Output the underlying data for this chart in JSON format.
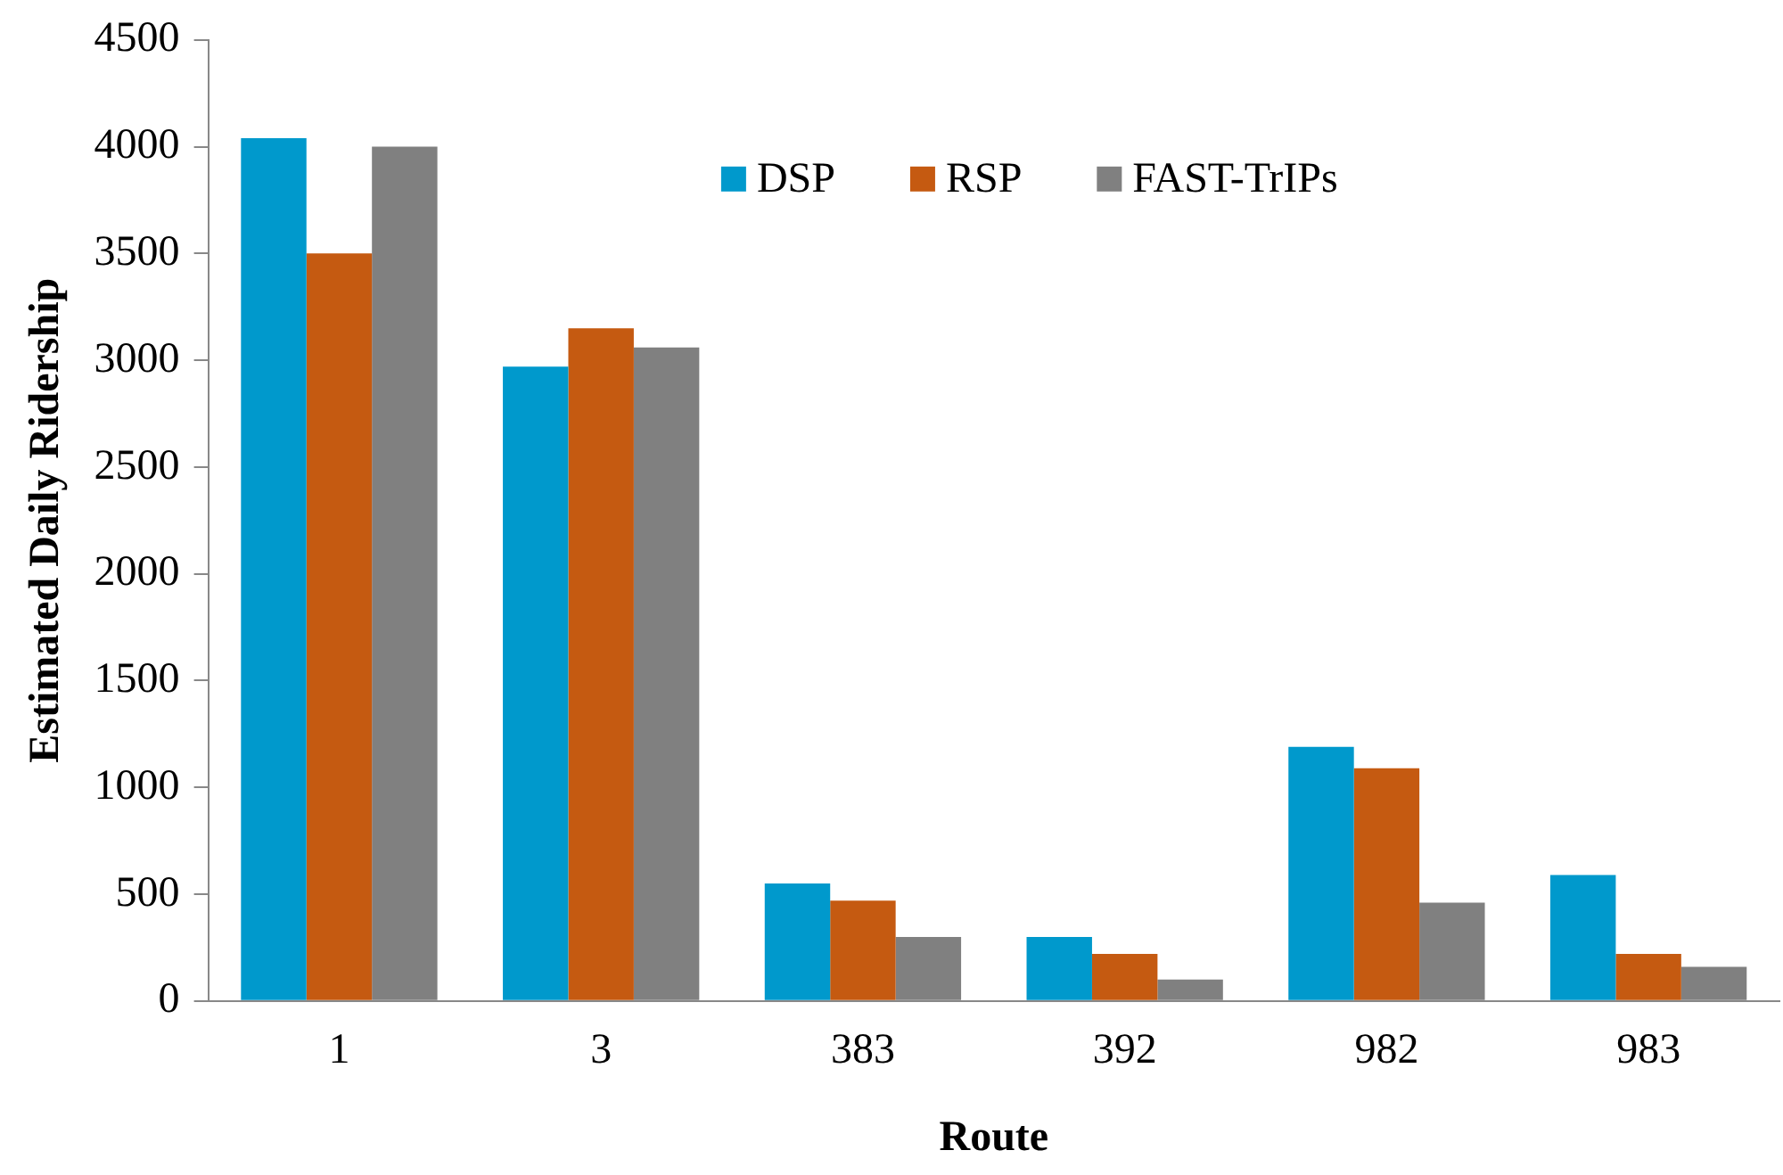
{
  "chart_data": {
    "type": "bar",
    "xlabel": "Route",
    "ylabel": "Estimated Daily Ridership",
    "categories": [
      "1",
      "3",
      "383",
      "392",
      "982",
      "983"
    ],
    "series": [
      {
        "name": "DSP",
        "color": "#0099cc",
        "values": [
          4040,
          2970,
          550,
          300,
          1190,
          590
        ]
      },
      {
        "name": "RSP",
        "color": "#c55a11",
        "values": [
          3500,
          3150,
          470,
          220,
          1090,
          220
        ]
      },
      {
        "name": "FAST-TrIPs",
        "color": "#808080",
        "values": [
          4000,
          3060,
          300,
          100,
          460,
          160
        ]
      }
    ],
    "ylim": [
      0,
      4500
    ],
    "yticks": [
      0,
      500,
      1000,
      1500,
      2000,
      2500,
      3000,
      3500,
      4000,
      4500
    ],
    "grid": false,
    "legend": "top"
  }
}
